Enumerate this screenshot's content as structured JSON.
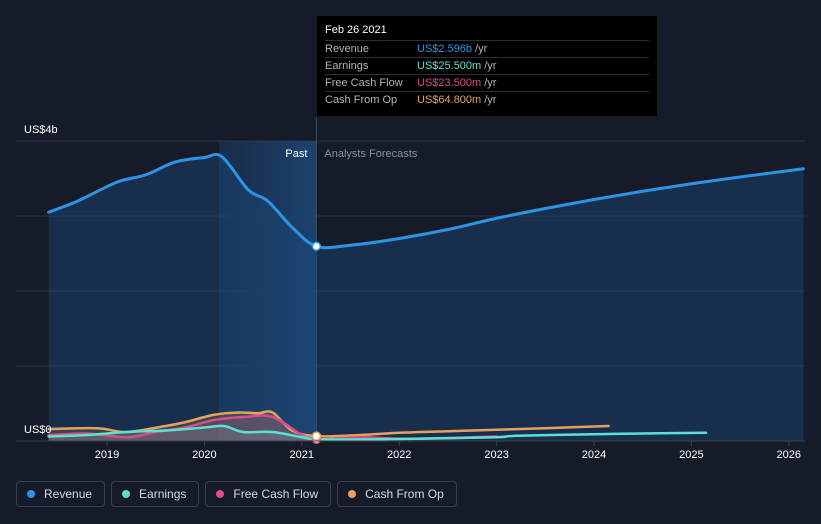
{
  "chart_data": {
    "type": "line",
    "y_axis_top_label": "US$4b",
    "y_axis_zero_label": "US$0",
    "ylim": [
      0,
      4
    ],
    "xlim": [
      2018.4,
      2026.15
    ],
    "grid": true,
    "past_label": "Past",
    "forecast_label": "Analysts Forecasts",
    "x_ticks": [
      "2019",
      "2020",
      "2021",
      "2022",
      "2023",
      "2024",
      "2025",
      "2026"
    ],
    "x_tick_values": [
      2019,
      2020,
      2021,
      2022,
      2023,
      2024,
      2025,
      2026
    ],
    "past_end": 2021.15,
    "series": [
      {
        "name": "Revenue",
        "color": "#2d94e3",
        "points": [
          [
            2018.4,
            3.05
          ],
          [
            2018.7,
            3.2
          ],
          [
            2019.1,
            3.45
          ],
          [
            2019.4,
            3.55
          ],
          [
            2019.7,
            3.72
          ],
          [
            2020.0,
            3.78
          ],
          [
            2020.18,
            3.79
          ],
          [
            2020.45,
            3.35
          ],
          [
            2020.65,
            3.2
          ],
          [
            2020.9,
            2.85
          ],
          [
            2021.15,
            2.596
          ],
          [
            2021.5,
            2.61
          ],
          [
            2022.0,
            2.7
          ],
          [
            2022.5,
            2.82
          ],
          [
            2023.0,
            2.97
          ],
          [
            2023.5,
            3.1
          ],
          [
            2024.0,
            3.22
          ],
          [
            2024.5,
            3.33
          ],
          [
            2025.0,
            3.43
          ],
          [
            2025.5,
            3.52
          ],
          [
            2026.15,
            3.63
          ]
        ]
      },
      {
        "name": "Earnings",
        "color": "#5ce0d0",
        "points": [
          [
            2018.4,
            0.06
          ],
          [
            2018.8,
            0.08
          ],
          [
            2019.2,
            0.12
          ],
          [
            2019.6,
            0.14
          ],
          [
            2020.0,
            0.18
          ],
          [
            2020.2,
            0.2
          ],
          [
            2020.4,
            0.12
          ],
          [
            2020.7,
            0.12
          ],
          [
            2021.0,
            0.05
          ],
          [
            2021.15,
            0.0255
          ],
          [
            2021.6,
            0.02
          ],
          [
            2022.2,
            0.03
          ],
          [
            2023.0,
            0.05
          ],
          [
            2023.2,
            0.07
          ],
          [
            2024.0,
            0.09
          ],
          [
            2024.5,
            0.1
          ],
          [
            2025.15,
            0.11
          ]
        ]
      },
      {
        "name": "Free Cash Flow",
        "color": "#d94d8a",
        "points": [
          [
            2018.4,
            0.08
          ],
          [
            2018.8,
            0.1
          ],
          [
            2019.2,
            0.05
          ],
          [
            2019.5,
            0.12
          ],
          [
            2019.8,
            0.18
          ],
          [
            2020.1,
            0.28
          ],
          [
            2020.4,
            0.32
          ],
          [
            2020.7,
            0.32
          ],
          [
            2021.0,
            0.08
          ],
          [
            2021.15,
            0.0235
          ],
          [
            2021.6,
            0.05
          ],
          [
            2022.0,
            0.03
          ],
          [
            2022.5,
            0.04
          ],
          [
            2023.0,
            0.06
          ]
        ]
      },
      {
        "name": "Cash From Op",
        "color": "#e6a25c",
        "points": [
          [
            2018.4,
            0.16
          ],
          [
            2018.9,
            0.17
          ],
          [
            2019.2,
            0.12
          ],
          [
            2019.6,
            0.2
          ],
          [
            2019.8,
            0.25
          ],
          [
            2020.1,
            0.35
          ],
          [
            2020.35,
            0.38
          ],
          [
            2020.55,
            0.37
          ],
          [
            2020.7,
            0.38
          ],
          [
            2020.9,
            0.14
          ],
          [
            2021.15,
            0.0648
          ],
          [
            2021.6,
            0.08
          ],
          [
            2022.0,
            0.11
          ],
          [
            2022.5,
            0.13
          ],
          [
            2023.0,
            0.15
          ],
          [
            2023.5,
            0.17
          ],
          [
            2024.15,
            0.2
          ]
        ]
      }
    ],
    "highlight_x": 2021.15
  },
  "tooltip": {
    "date": "Feb 26 2021",
    "rows": [
      {
        "name": "Revenue",
        "value": "US$2.596b",
        "unit": "/yr",
        "color": "#2d94e3"
      },
      {
        "name": "Earnings",
        "value": "US$25.500m",
        "unit": "/yr",
        "color": "#5ce0d0"
      },
      {
        "name": "Free Cash Flow",
        "value": "US$23.500m",
        "unit": "/yr",
        "color": "#d94d8a"
      },
      {
        "name": "Cash From Op",
        "value": "US$64.800m",
        "unit": "/yr",
        "color": "#e6a25c"
      }
    ]
  },
  "legend": [
    {
      "label": "Revenue",
      "color": "#2d94e3"
    },
    {
      "label": "Earnings",
      "color": "#5ce0d0"
    },
    {
      "label": "Free Cash Flow",
      "color": "#d94d8a"
    },
    {
      "label": "Cash From Op",
      "color": "#e6a25c"
    }
  ]
}
